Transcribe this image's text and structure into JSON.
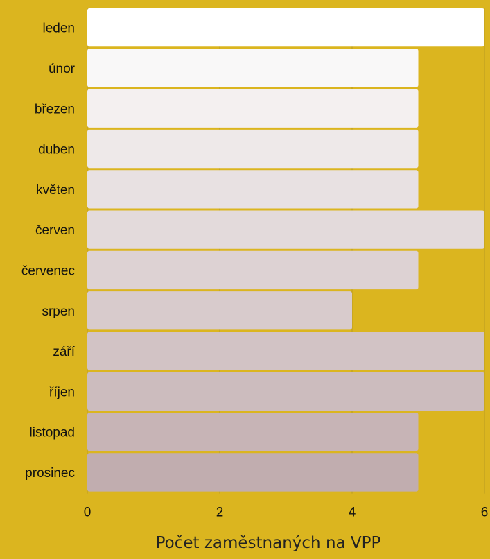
{
  "chart_data": {
    "type": "bar",
    "orientation": "horizontal",
    "categories": [
      "leden",
      "únor",
      "březen",
      "duben",
      "květen",
      "červen",
      "červenec",
      "srpen",
      "září",
      "říjen",
      "listopad",
      "prosinec"
    ],
    "values": [
      6,
      5,
      5,
      5,
      5,
      6,
      5,
      4,
      6,
      6,
      5,
      5
    ],
    "title": "",
    "xlabel": "Počet zaměstnaných na VPP",
    "ylabel": "",
    "xlim": [
      0,
      6
    ],
    "xticks": [
      0,
      2,
      4,
      6
    ],
    "grid": true,
    "legend": "none",
    "colors": {
      "background": "#dbb51f",
      "gridline": "#b89a22",
      "bar_start": "#ffffff",
      "bar_end": "#c1adaf"
    }
  }
}
